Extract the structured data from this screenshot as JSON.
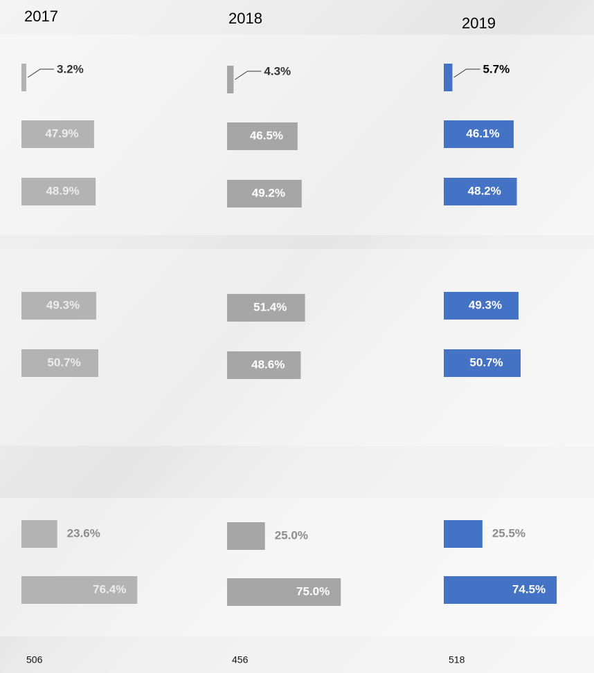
{
  "chart_data": [
    {
      "type": "bar",
      "title": "2017",
      "values": [
        3.2,
        47.9,
        48.9,
        49.3,
        50.7,
        23.6,
        76.4
      ],
      "value_labels": [
        "3.2%",
        "47.9%",
        "48.9%",
        "49.3%",
        "50.7%",
        "23.6%",
        "76.4%"
      ],
      "color": "#b3b3b3",
      "xlim": [
        0,
        100
      ],
      "total": 506
    },
    {
      "type": "bar",
      "title": "2018",
      "values": [
        4.3,
        46.5,
        49.2,
        51.4,
        48.6,
        25.0,
        75.0
      ],
      "value_labels": [
        "4.3%",
        "46.5%",
        "49.2%",
        "51.4%",
        "48.6%",
        "25.0%",
        "75.0%"
      ],
      "color": "#a6a6a6",
      "xlim": [
        0,
        100
      ],
      "total": 456
    },
    {
      "type": "bar",
      "title": "2019",
      "values": [
        5.7,
        46.1,
        48.2,
        49.3,
        50.7,
        25.5,
        74.5
      ],
      "value_labels": [
        "5.7%",
        "46.1%",
        "48.2%",
        "49.3%",
        "50.7%",
        "25.5%",
        "74.5%"
      ],
      "color": "#4472c4",
      "xlim": [
        0,
        100
      ],
      "total": 518
    }
  ]
}
